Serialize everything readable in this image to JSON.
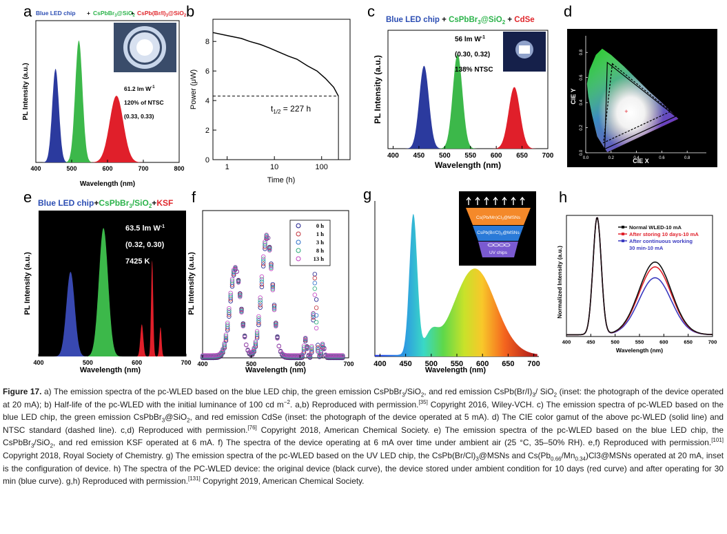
{
  "panels": {
    "a": {
      "letter": "a"
    },
    "b": {
      "letter": "b"
    },
    "c": {
      "letter": "c"
    },
    "d": {
      "letter": "d"
    },
    "e": {
      "letter": "e"
    },
    "f": {
      "letter": "f"
    },
    "g": {
      "letter": "g"
    },
    "h": {
      "letter": "h"
    }
  },
  "chart_data": [
    {
      "id": "a",
      "type": "area",
      "title_parts": [
        "Blue LED chip",
        " + ",
        "CsPbBr",
        "3",
        "@SiO",
        "2",
        " + ",
        "CsPb(Br/I)",
        "3",
        "@SiO",
        "2"
      ],
      "title_colors": {
        "blue": "#2b4db3",
        "green": "#2bb34a",
        "red": "#e0262b"
      },
      "xlabel": "Wavelength (nm)",
      "ylabel": "PL Intensity (a.u.)",
      "xlim": [
        400,
        800
      ],
      "xticks": [
        "400",
        "500",
        "600",
        "700",
        "800"
      ],
      "annotations": [
        "61.2 lm W",
        "-1",
        "120% of NTSC",
        "(0.33, 0.33)"
      ],
      "series": [
        {
          "name": "blue",
          "color": "#2b3a9e",
          "peak_x": 455,
          "peak": 0.66,
          "fwhm": 22
        },
        {
          "name": "green",
          "color": "#3cb84a",
          "peak_x": 520,
          "peak": 0.86,
          "fwhm": 24
        },
        {
          "name": "red",
          "color": "#e01f2a",
          "peak_x": 625,
          "peak": 0.47,
          "fwhm": 45
        }
      ]
    },
    {
      "id": "b",
      "type": "line",
      "xlabel": "Time (h)",
      "ylabel": "Power (μW)",
      "xscale": "log",
      "xlim": [
        0.5,
        400
      ],
      "ylim": [
        0,
        9.5
      ],
      "xticks": [
        1,
        10,
        100
      ],
      "xtick_labels": [
        "1",
        "10",
        "100"
      ],
      "yticks": [
        0,
        2,
        4,
        6,
        8
      ],
      "ytick_labels": [
        "0",
        "2",
        "4",
        "6",
        "8"
      ],
      "annotation": "t",
      "annotation_sub": "1/2",
      "annotation_rest": " = 227 h",
      "half_value": 4.3,
      "half_time": 227,
      "x": [
        0.5,
        1,
        2,
        3,
        5,
        8,
        12,
        20,
        30,
        50,
        80,
        120,
        180,
        227
      ],
      "y": [
        8.6,
        8.4,
        8.2,
        8.0,
        7.8,
        7.55,
        7.3,
        7.0,
        6.8,
        6.35,
        6.0,
        5.5,
        4.9,
        4.3
      ]
    },
    {
      "id": "c",
      "type": "area",
      "title_parts": [
        "Blue LED chip",
        " + ",
        "CsPbBr",
        "3",
        "@SiO",
        "2",
        " + ",
        "CdSe"
      ],
      "xlabel": "Wavelength (nm)",
      "ylabel": "PL Intensity (a.u.)",
      "xlim": [
        390,
        700
      ],
      "xticks": [
        "400",
        "450",
        "500",
        "550",
        "600",
        "650",
        "700"
      ],
      "annotations": [
        "56 lm W",
        "-1",
        "(0.30, 0.32)",
        "138% NTSC"
      ],
      "series": [
        {
          "name": "blue",
          "color": "#2b3a9e",
          "peak_x": 460,
          "peak": 0.7,
          "fwhm": 22
        },
        {
          "name": "green",
          "color": "#3cb84a",
          "peak_x": 525,
          "peak": 0.8,
          "fwhm": 22
        },
        {
          "name": "red",
          "color": "#e01f2a",
          "peak_x": 635,
          "peak": 0.52,
          "fwhm": 26
        }
      ]
    },
    {
      "id": "d",
      "type": "scatter",
      "xlabel": "CIE X",
      "ylabel": "CIE Y",
      "xticks": [
        "0.0",
        "0.2",
        "0.4",
        "0.6",
        "0.8"
      ],
      "yticks": [
        "0.0",
        "0.2",
        "0.4",
        "0.6",
        "0.8"
      ],
      "triangle_device": [
        [
          0.17,
          0.72
        ],
        [
          0.71,
          0.29
        ],
        [
          0.15,
          0.03
        ]
      ],
      "triangle_ntsc": [
        [
          0.21,
          0.71
        ],
        [
          0.67,
          0.33
        ],
        [
          0.14,
          0.08
        ]
      ],
      "white_point": [
        0.32,
        0.33
      ]
    },
    {
      "id": "e",
      "type": "area",
      "title_parts": [
        "Blue LED chip",
        "+",
        "CsPbBr",
        "3",
        "/SiO",
        "2",
        "+",
        "KSF"
      ],
      "xlabel": "Wavelength (nm)",
      "ylabel": "PL Intensity (a.u.)",
      "xlim": [
        400,
        700
      ],
      "xticks": [
        "400",
        "500",
        "600",
        "700"
      ],
      "annotations": [
        "63.5 lm W",
        "-1",
        "(0.32, 0.30)",
        "7425 K"
      ]
    },
    {
      "id": "f",
      "type": "scatter",
      "xlabel": "Wavelength (nm)",
      "ylabel": "PL Intensity (a.u.)",
      "xlim": [
        400,
        700
      ],
      "xticks": [
        "400",
        "500",
        "600",
        "700"
      ],
      "legend": [
        "0 h",
        "1 h",
        "3 h",
        "8 h",
        "13 h"
      ],
      "legend_colors": [
        "#1a1a8a",
        "#c0303a",
        "#2a6ec8",
        "#2aa878",
        "#c040c0"
      ]
    },
    {
      "id": "g",
      "type": "area",
      "xlabel": "Wavelength (nm)",
      "xlim": [
        390,
        710
      ],
      "xticks": [
        "400",
        "450",
        "500",
        "550",
        "600",
        "650",
        "700"
      ],
      "inset_layers": [
        "Cs(Pb/Mn)Cl",
        "3",
        "@MSNs",
        "CsPb(Br/Cl)",
        "3",
        "@MSNs",
        "UV chips"
      ]
    },
    {
      "id": "h",
      "type": "line",
      "xlabel": "Wavelength (nm)",
      "ylabel": "Normalized Intensity (a.u.)",
      "xlim": [
        400,
        700
      ],
      "xticks": [
        "400",
        "450",
        "500",
        "550",
        "600",
        "650",
        "700"
      ],
      "legend": [
        "Normal WLED-10 mA",
        "After storing 10 days-10 mA",
        "After continuous working",
        "30 min-10 mA"
      ],
      "series": [
        {
          "name": "Normal WLED-10 mA",
          "color": "#111111",
          "green_peak": 0.6
        },
        {
          "name": "After storing 10 days-10 mA",
          "color": "#e0202a",
          "green_peak": 0.56
        },
        {
          "name": "After continuous working 30 min-10 mA",
          "color": "#3a3ac0",
          "green_peak": 0.47
        }
      ]
    }
  ],
  "caption": {
    "label": "Figure 17.",
    "text": [
      " a) The emission spectra of the pc-WLED based on the blue LED chip, the green emission CsPbBr",
      "3",
      "/SiO",
      "2",
      ", and red emission CsPb(Br/I)",
      "3",
      "/ SiO",
      "2",
      " (inset: the photograph of the device operated at 20 mA); b) Half-life of the pc-WLED with the initial luminance of 100 cd m",
      "−2",
      ". a,b) Reproduced with permission.",
      "[35]",
      " Copyright 2016, Wiley-VCH. c) The emission spectra of pc-WLED based on the blue LED chip, the green emission CsPbBr",
      "3",
      "@SiO",
      "2",
      ", and red emission CdSe (inset: the photograph of the device operated at 5 mA). d) The CIE color gamut of the above pc-WLED (solid line) and NTSC standard (dashed line). c,d) Reproduced with permission.",
      "[76]",
      " Copyright 2018, American Chemical Society. e) The emission spectra of the pc-WLED based on the blue LED chip, the CsPbBr",
      "3",
      "/SiO",
      "2",
      ", and red emission KSF operated at 6 mA. f) The spectra of the device operating at 6 mA over time under ambient air (25 °C, 35–50% RH). e,f) Reproduced with permission.",
      "[101]",
      " Copyright 2018, Royal Society of Chemistry. g) The emission spectra of the pc-WLED based on the UV LED chip, the CsPb(Br/Cl)",
      "3",
      "@MSNs and Cs(Pb",
      "0.66",
      "/Mn",
      "0.34",
      ")Cl",
      "3",
      "@MSNs operated at 20 mA, inset is the configuration of device. h) The spectra of the PC-WLED device: the original device (black curve), the device stored under ambient condition for 10 days (red curve) and after operating for 30 min (blue curve). g,h) Reproduced with permission.",
      "[131]",
      " Copyright 2019, American Chemical Society."
    ]
  }
}
